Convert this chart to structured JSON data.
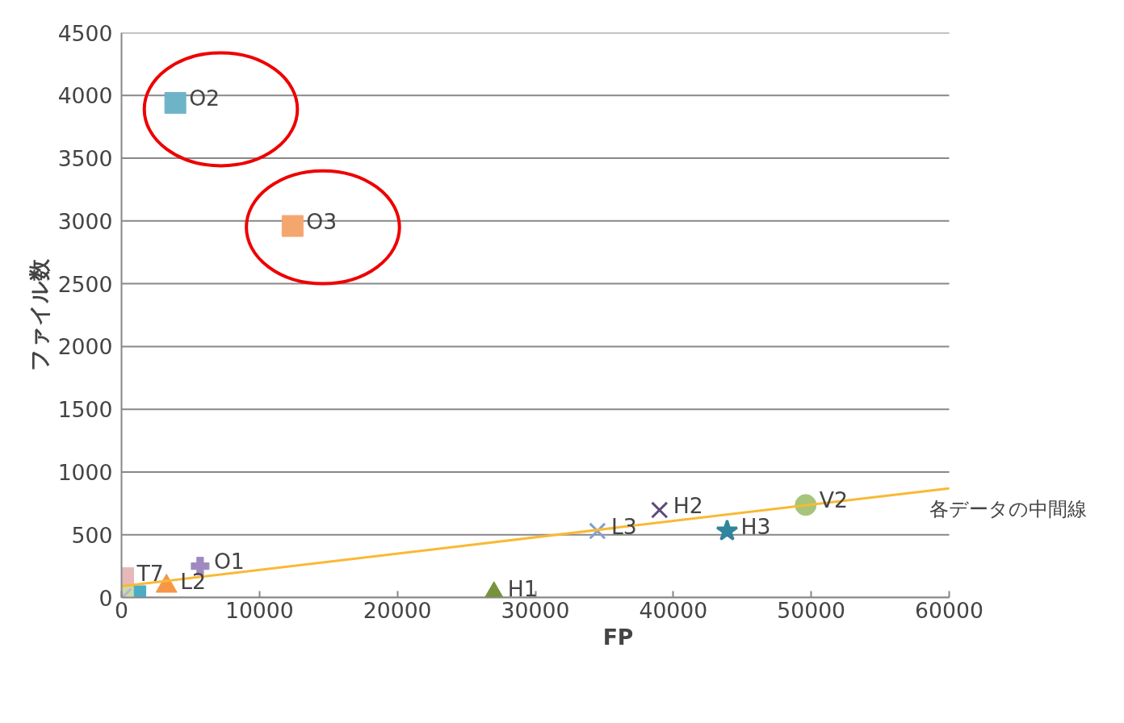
{
  "chart_data": {
    "type": "scatter",
    "xlabel": "FP",
    "ylabel": "ファイル数",
    "xlim": [
      0,
      60000
    ],
    "xticks": [
      0,
      10000,
      20000,
      30000,
      40000,
      50000,
      60000
    ],
    "ylim": [
      0,
      4500
    ],
    "yticks": [
      0,
      500,
      1000,
      1500,
      2000,
      2500,
      3000,
      3500,
      4000,
      4500
    ],
    "grid": "y",
    "series": [
      {
        "name": "O2",
        "color": "#6fb3c8",
        "marker": "square",
        "x": [
          3900
        ],
        "values": [
          3940
        ]
      },
      {
        "name": "O3",
        "color": "#f4a66f",
        "marker": "square",
        "x": [
          12400
        ],
        "values": [
          2960
        ]
      },
      {
        "name": "O1",
        "color": "#9f8ac0",
        "marker": "cross",
        "x": [
          5700
        ],
        "values": [
          250
        ]
      },
      {
        "name": "T7",
        "color": "#e6b9b8",
        "marker": "square",
        "x": [
          120
        ],
        "values": [
          155
        ]
      },
      {
        "name": "L2",
        "color": "#f79646",
        "marker": "triangle",
        "x": [
          3260
        ],
        "values": [
          90
        ]
      },
      {
        "color": "#4bacc6",
        "marker": "square",
        "x": [
          1000
        ],
        "values": [
          10
        ]
      },
      {
        "color": "#c9dba6",
        "marker": "square",
        "x": [
          100
        ],
        "values": [
          5
        ]
      },
      {
        "color": "#b7b3dc",
        "marker": "x",
        "x": [
          150
        ],
        "values": [
          10
        ]
      },
      {
        "name": "H1",
        "color": "#77933c",
        "marker": "triangle",
        "x": [
          27000
        ],
        "values": [
          30
        ]
      },
      {
        "name": "L3",
        "color": "#7f9fd0",
        "marker": "x",
        "x": [
          34500
        ],
        "values": [
          530
        ]
      },
      {
        "name": "H2",
        "color": "#604a7b",
        "marker": "x",
        "x": [
          39000
        ],
        "values": [
          697
        ]
      },
      {
        "name": "H3",
        "color": "#31859c",
        "marker": "star",
        "x": [
          43900
        ],
        "values": [
          530
        ]
      },
      {
        "name": "V2",
        "color": "#a6c47a",
        "marker": "circle",
        "x": [
          49600
        ],
        "values": [
          737
        ]
      },
      {
        "name": "各データの中間線",
        "type": "line",
        "color": "#f9b935",
        "x": [
          0,
          60000
        ],
        "values": [
          90,
          870
        ]
      }
    ]
  }
}
